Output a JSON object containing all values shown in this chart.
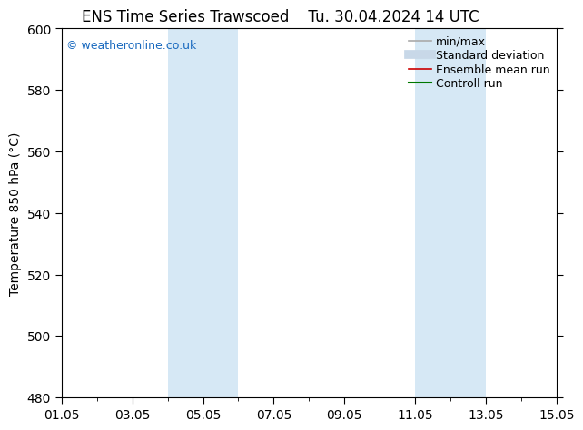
{
  "title_left": "ENS Time Series Trawscoed",
  "title_right": "Tu. 30.04.2024 14 UTC",
  "ylabel": "Temperature 850 hPa (°C)",
  "ylim": [
    480,
    600
  ],
  "yticks": [
    480,
    500,
    520,
    540,
    560,
    580,
    600
  ],
  "xlim_days": [
    0,
    14
  ],
  "xtick_labels": [
    "01.05",
    "03.05",
    "05.05",
    "07.05",
    "09.05",
    "11.05",
    "13.05",
    "15.05"
  ],
  "xtick_positions": [
    0,
    2,
    4,
    6,
    8,
    10,
    12,
    14
  ],
  "shaded_bands": [
    {
      "xmin": 3.0,
      "xmax": 5.0
    },
    {
      "xmin": 10.0,
      "xmax": 12.0
    }
  ],
  "shade_color": "#d6e8f5",
  "watermark": "© weatheronline.co.uk",
  "watermark_color": "#1a6abf",
  "bg_color": "#ffffff",
  "plot_bg_color": "#ffffff",
  "legend_entries": [
    {
      "label": "min/max",
      "color": "#aaaaaa",
      "lw": 1.2,
      "style": "solid"
    },
    {
      "label": "Standard deviation",
      "color": "#c8d8e8",
      "lw": 7,
      "style": "solid"
    },
    {
      "label": "Ensemble mean run",
      "color": "#cc0000",
      "lw": 1.2,
      "style": "solid"
    },
    {
      "label": "Controll run",
      "color": "#007700",
      "lw": 1.5,
      "style": "solid"
    }
  ],
  "title_fontsize": 12,
  "axis_label_fontsize": 10,
  "tick_fontsize": 10,
  "legend_fontsize": 9,
  "watermark_fontsize": 9
}
